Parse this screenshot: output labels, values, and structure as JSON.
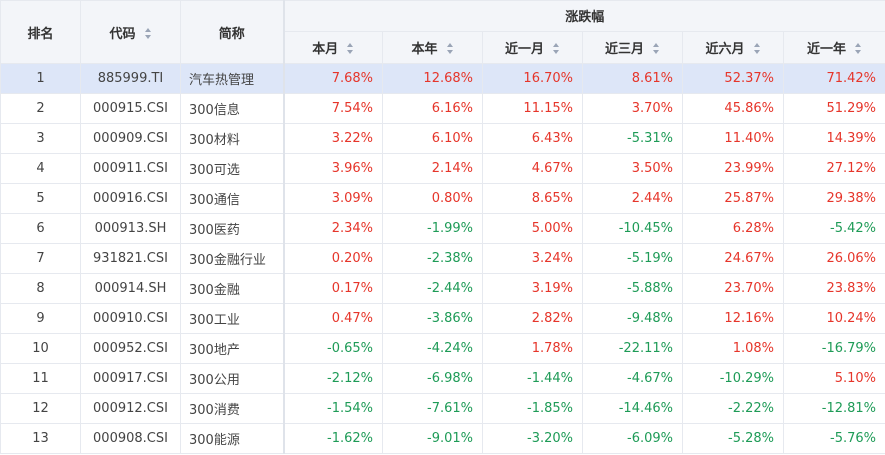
{
  "header": {
    "rank": "排名",
    "code": "代码",
    "name": "简称",
    "change_group": "涨跌幅",
    "periods": [
      "本月",
      "本年",
      "近一月",
      "近三月",
      "近六月",
      "近一年"
    ]
  },
  "colors": {
    "up": "#e6352a",
    "down": "#1e9b57",
    "highlight_row": "#dde6f8",
    "header_bg": "#f3f5f9"
  },
  "rows": [
    {
      "rank": "1",
      "code": "885999.TI",
      "name": "汽车热管理",
      "vals": [
        "7.68%",
        "12.68%",
        "16.70%",
        "8.61%",
        "52.37%",
        "71.42%"
      ]
    },
    {
      "rank": "2",
      "code": "000915.CSI",
      "name": "300信息",
      "vals": [
        "7.54%",
        "6.16%",
        "11.15%",
        "3.70%",
        "45.86%",
        "51.29%"
      ]
    },
    {
      "rank": "3",
      "code": "000909.CSI",
      "name": "300材料",
      "vals": [
        "3.22%",
        "6.10%",
        "6.43%",
        "-5.31%",
        "11.40%",
        "14.39%"
      ]
    },
    {
      "rank": "4",
      "code": "000911.CSI",
      "name": "300可选",
      "vals": [
        "3.96%",
        "2.14%",
        "4.67%",
        "3.50%",
        "23.99%",
        "27.12%"
      ]
    },
    {
      "rank": "5",
      "code": "000916.CSI",
      "name": "300通信",
      "vals": [
        "3.09%",
        "0.80%",
        "8.65%",
        "2.44%",
        "25.87%",
        "29.38%"
      ]
    },
    {
      "rank": "6",
      "code": "000913.SH",
      "name": "300医药",
      "vals": [
        "2.34%",
        "-1.99%",
        "5.00%",
        "-10.45%",
        "6.28%",
        "-5.42%"
      ]
    },
    {
      "rank": "7",
      "code": "931821.CSI",
      "name": "300金融行业",
      "vals": [
        "0.20%",
        "-2.38%",
        "3.24%",
        "-5.19%",
        "24.67%",
        "26.06%"
      ]
    },
    {
      "rank": "8",
      "code": "000914.SH",
      "name": "300金融",
      "vals": [
        "0.17%",
        "-2.44%",
        "3.19%",
        "-5.88%",
        "23.70%",
        "23.83%"
      ]
    },
    {
      "rank": "9",
      "code": "000910.CSI",
      "name": "300工业",
      "vals": [
        "0.47%",
        "-3.86%",
        "2.82%",
        "-9.48%",
        "12.16%",
        "10.24%"
      ]
    },
    {
      "rank": "10",
      "code": "000952.CSI",
      "name": "300地产",
      "vals": [
        "-0.65%",
        "-4.24%",
        "1.78%",
        "-22.11%",
        "1.08%",
        "-16.79%"
      ]
    },
    {
      "rank": "11",
      "code": "000917.CSI",
      "name": "300公用",
      "vals": [
        "-2.12%",
        "-6.98%",
        "-1.44%",
        "-4.67%",
        "-10.29%",
        "5.10%"
      ]
    },
    {
      "rank": "12",
      "code": "000912.CSI",
      "name": "300消费",
      "vals": [
        "-1.54%",
        "-7.61%",
        "-1.85%",
        "-14.46%",
        "-2.22%",
        "-12.81%"
      ]
    },
    {
      "rank": "13",
      "code": "000908.CSI",
      "name": "300能源",
      "vals": [
        "-1.62%",
        "-9.01%",
        "-3.20%",
        "-6.09%",
        "-5.28%",
        "-5.76%"
      ]
    }
  ]
}
